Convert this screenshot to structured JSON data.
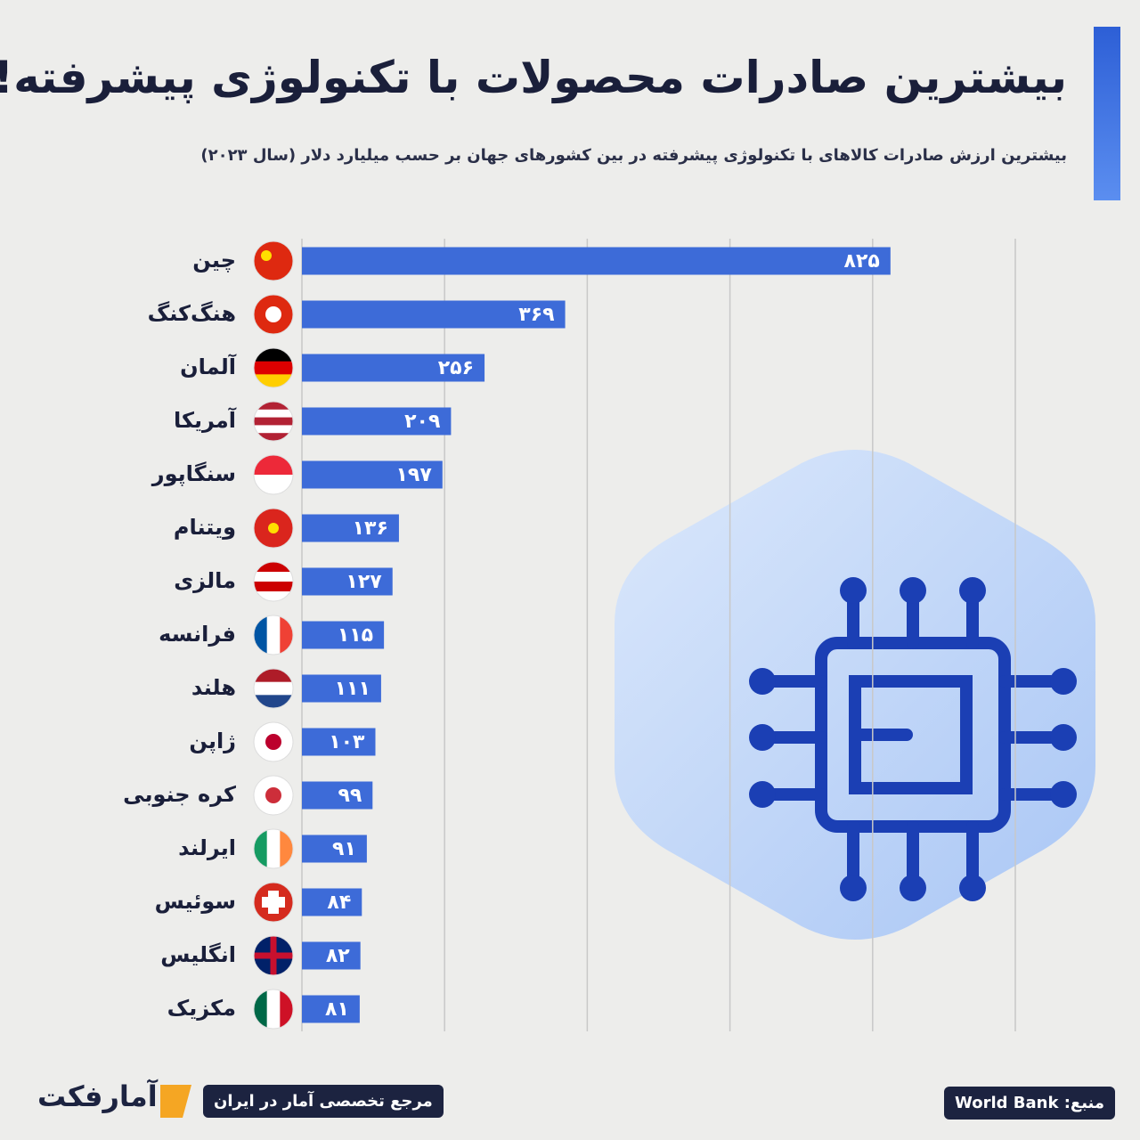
{
  "chart_data": {
    "type": "bar",
    "orientation": "horizontal",
    "title": "بیشترین صادرات محصولات با تکنولوژی پیشرفته!",
    "subtitle": "بیشترین ارزش صادرات کالاهای با تکنولوژی پیشرفته در بین کشورهای جهان بر حسب میلیارد دلار (سال ۲۰۲۳)",
    "categories": [
      "چین",
      "هنگ‌کنگ",
      "آلمان",
      "آمریکا",
      "سنگاپور",
      "ویتنام",
      "مالزی",
      "فرانسه",
      "هلند",
      "ژاپن",
      "کره جنوبی",
      "ایرلند",
      "سوئیس",
      "انگلیس",
      "مکزیک"
    ],
    "values": [
      825,
      369,
      256,
      209,
      197,
      136,
      127,
      115,
      111,
      103,
      99,
      91,
      84,
      82,
      81
    ],
    "value_labels": [
      "۸۲۵",
      "۳۶۹",
      "۲۵۶",
      "۲۰۹",
      "۱۹۷",
      "۱۳۶",
      "۱۲۷",
      "۱۱۵",
      "۱۱۱",
      "۱۰۳",
      "۹۹",
      "۹۱",
      "۸۴",
      "۸۲",
      "۸۱"
    ],
    "color": "#3d6bd8",
    "xlim": [
      0,
      1000
    ],
    "xticks": [
      0,
      200,
      400,
      600,
      800,
      1000
    ],
    "grid": true
  },
  "footer": {
    "source": "منبع: World Bank",
    "brand": "آمارفکت",
    "tagline": "مرجع تخصصی آمار در ایران"
  }
}
